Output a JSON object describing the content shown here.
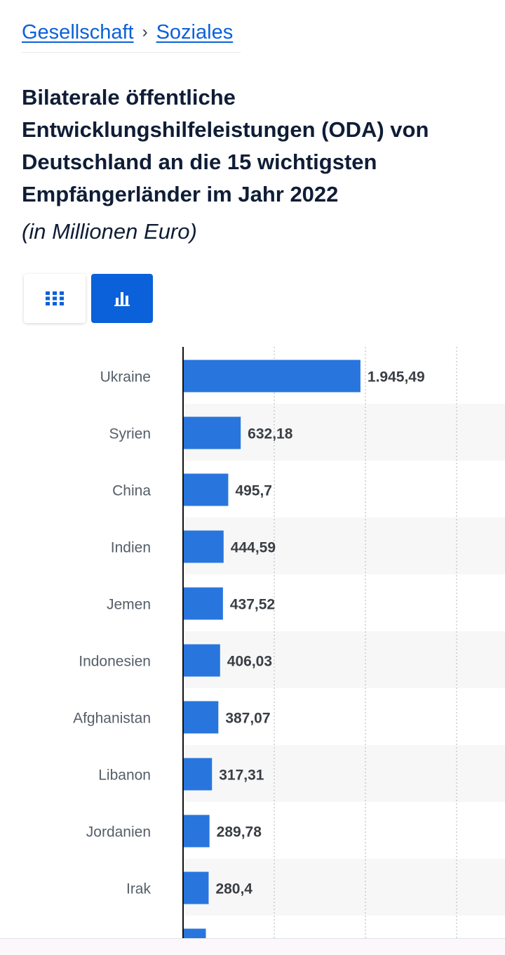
{
  "breadcrumb": {
    "items": [
      "Gesellschaft",
      "Soziales"
    ],
    "separator": "›"
  },
  "title": "Bilaterale öffentliche Entwicklungshilfeleistungen (ODA) von Deutschland an die 15 wichtigsten Empfängerländer im Jahr 2022",
  "subtitle": "(in Millionen Euro)",
  "view_toggle": {
    "options": [
      "table-view",
      "chart-view"
    ],
    "active": "chart-view"
  },
  "colors": {
    "bar": "#2876dd",
    "accent": "#0b61d9",
    "label": "#555e68",
    "value": "#3a3f45",
    "stripe": "#f7f7f7",
    "grid": "#c2c6cb"
  },
  "chart_data": {
    "type": "bar",
    "orientation": "horizontal",
    "categories": [
      "Ukraine",
      "Syrien",
      "China",
      "Indien",
      "Jemen",
      "Indonesien",
      "Afghanistan",
      "Libanon",
      "Jordanien",
      "Irak",
      ""
    ],
    "values": [
      1945.49,
      632.18,
      495.7,
      444.59,
      437.52,
      406.03,
      387.07,
      317.31,
      289.78,
      280.4,
      250
    ],
    "value_labels": [
      "1.945,49",
      "632,18",
      "495,7",
      "444,59",
      "437,52",
      "406,03",
      "387,07",
      "317,31",
      "289,78",
      "280,4",
      ""
    ],
    "xlim": [
      0,
      3000
    ],
    "grid": true,
    "grid_style": "dotted",
    "xlabel": "",
    "ylabel": ""
  }
}
